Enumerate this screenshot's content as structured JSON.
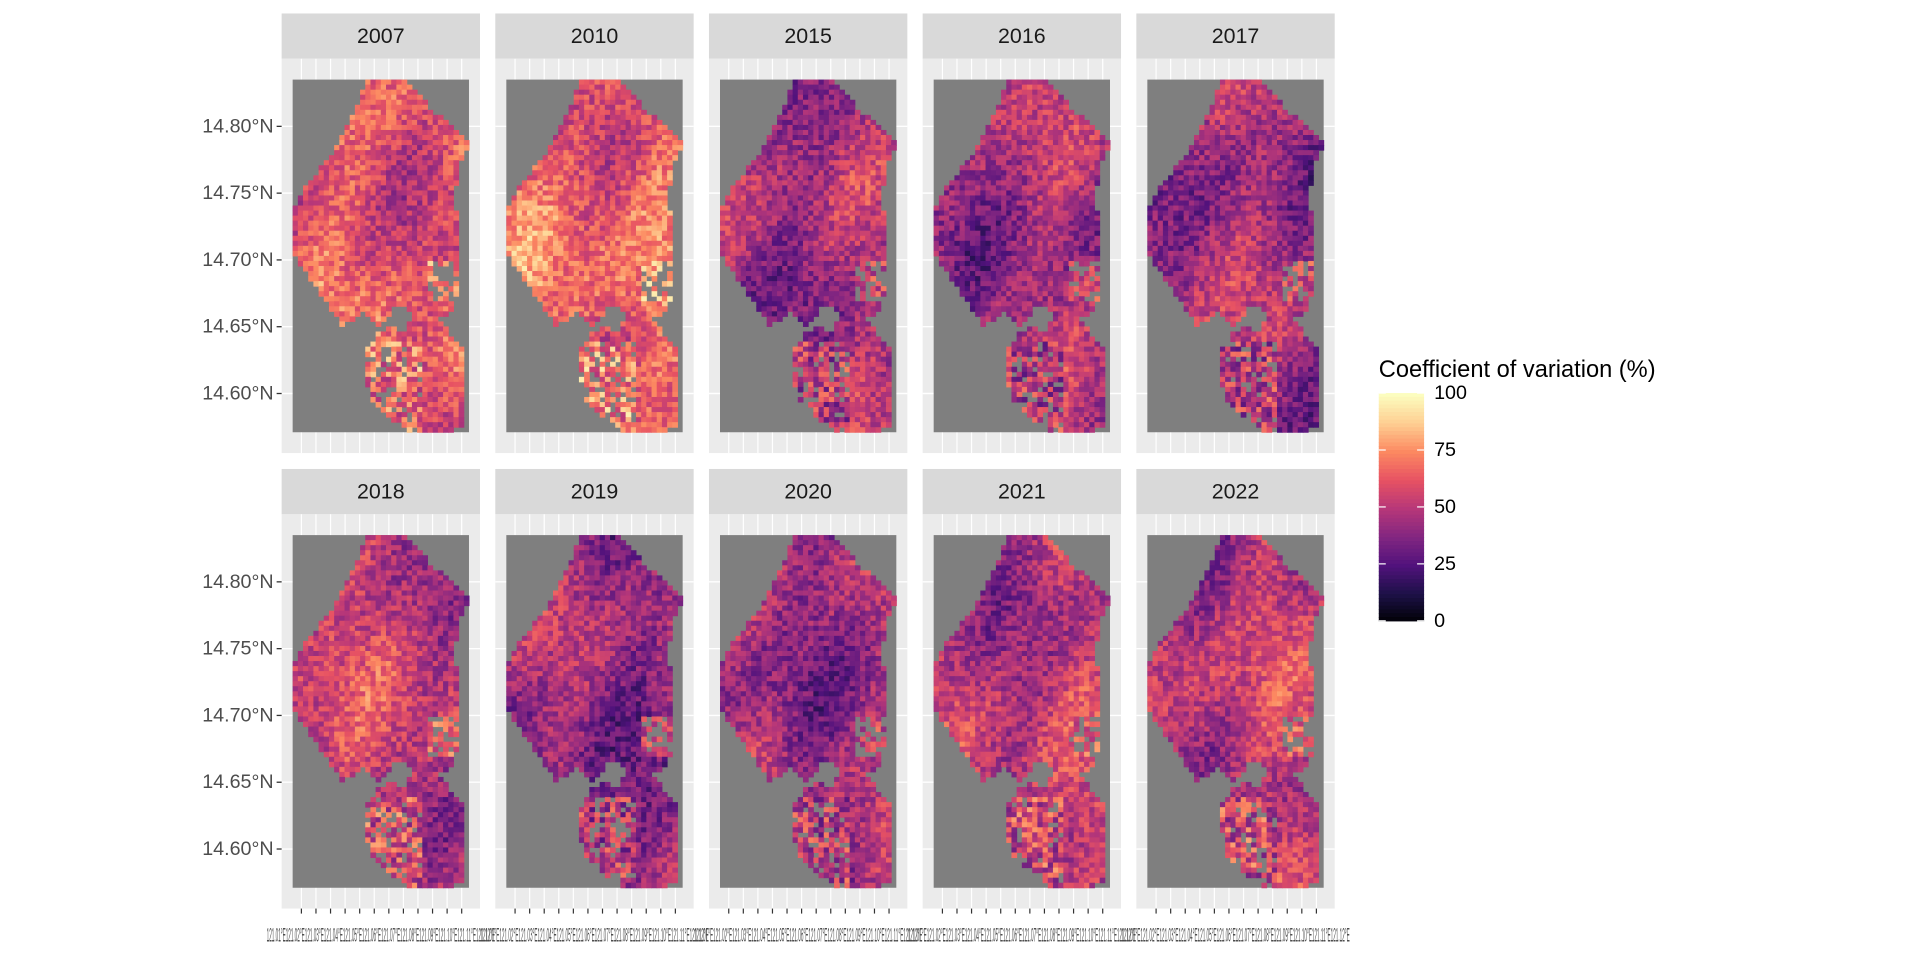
{
  "chart_data": {
    "type": "heatmap",
    "title": "",
    "xlabel": "",
    "ylabel": "",
    "facets": [
      "2007",
      "2010",
      "2015",
      "2016",
      "2017",
      "2018",
      "2019",
      "2020",
      "2021",
      "2022"
    ],
    "facet_layout": {
      "rows": 2,
      "cols": 5
    },
    "facet_mean_cv": [
      62,
      66,
      44,
      44,
      44,
      52,
      42,
      44,
      50,
      50
    ],
    "y_ticks": [
      {
        "value": 14.8,
        "label": "14.80°N"
      },
      {
        "value": 14.75,
        "label": "14.75°N"
      },
      {
        "value": 14.7,
        "label": "14.70°N"
      },
      {
        "value": 14.65,
        "label": "14.65°N"
      },
      {
        "value": 14.6,
        "label": "14.60°N"
      }
    ],
    "ylim": [
      14.571,
      14.835
    ],
    "x_ticks_label": "121.01°E121.02°E121.03°E121.04°E121.05°E121.06°E121.07°E121.08°E121.09°E121.10°E121.11°E121.12°E",
    "x_tick_values": [
      121.01,
      121.02,
      121.03,
      121.04,
      121.05,
      121.06,
      121.07,
      121.08,
      121.09,
      121.1,
      121.11,
      121.12
    ],
    "xlim": [
      121.004,
      121.125
    ],
    "missing_color": "#7f7f7f",
    "legend": {
      "title": "Coefficient of variation (%)",
      "placement": "right",
      "min": 0,
      "max": 100,
      "ticks": [
        {
          "value": 100,
          "label": "100"
        },
        {
          "value": 75,
          "label": "75"
        },
        {
          "value": 50,
          "label": "50"
        },
        {
          "value": 25,
          "label": "25"
        },
        {
          "value": 0,
          "label": "0"
        }
      ],
      "colors": [
        "#000004",
        "#1d1147",
        "#51127c",
        "#822681",
        "#b73779",
        "#e75263",
        "#fc8961",
        "#fecf92",
        "#fcfdbf"
      ]
    },
    "grid": true,
    "panel_background": "#ebebeb",
    "strip_background": "#d9d9d9"
  }
}
